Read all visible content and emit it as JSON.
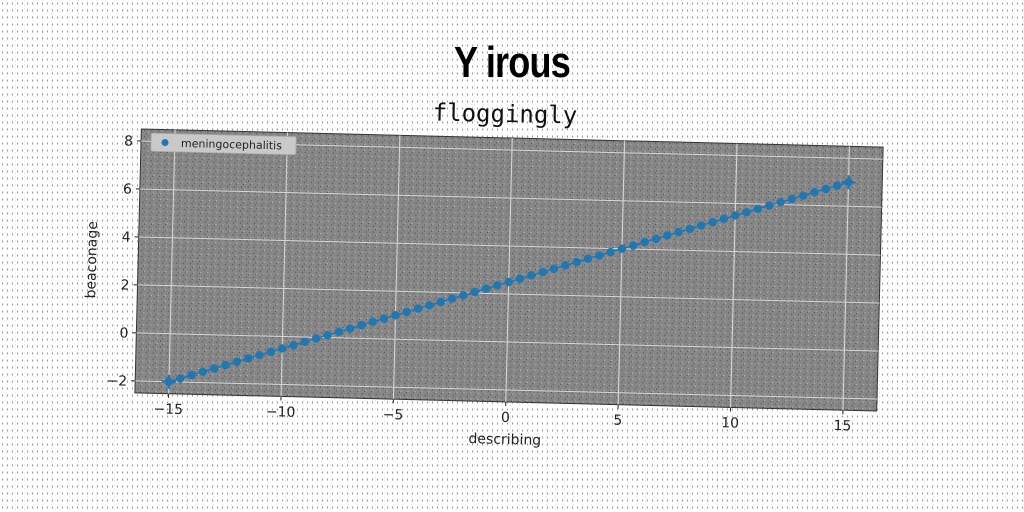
{
  "chart_data": {
    "type": "line",
    "title": "Y irous",
    "subtitle": "floggingly",
    "xlabel": "describing",
    "ylabel": "beaconage",
    "xlim": [
      -16.5,
      16.5
    ],
    "ylim": [
      -2.5,
      8.5
    ],
    "xticks": [
      -15,
      -10,
      -5,
      0,
      5,
      10,
      15
    ],
    "yticks": [
      -2,
      0,
      2,
      4,
      6,
      8
    ],
    "grid": true,
    "legend_position": "top-left",
    "series": [
      {
        "name": "meningocephalitis",
        "color": "#1f77b4",
        "marker": "circle",
        "endpoint_marker": "plus",
        "x": [
          -15.0,
          -14.5,
          -14.0,
          -13.5,
          -13.0,
          -12.5,
          -12.0,
          -11.5,
          -11.0,
          -10.5,
          -10.0,
          -9.5,
          -9.0,
          -8.5,
          -8.0,
          -7.5,
          -7.0,
          -6.5,
          -6.0,
          -5.5,
          -5.0,
          -4.5,
          -4.0,
          -3.5,
          -3.0,
          -2.5,
          -2.0,
          -1.5,
          -1.0,
          -0.5,
          0.0,
          0.5,
          1.0,
          1.5,
          2.0,
          2.5,
          3.0,
          3.5,
          4.0,
          4.5,
          5.0,
          5.5,
          6.0,
          6.5,
          7.0,
          7.5,
          8.0,
          8.5,
          9.0,
          9.5,
          10.0,
          10.5,
          11.0,
          11.5,
          12.0,
          12.5,
          13.0,
          13.5,
          14.0,
          14.5,
          15.0
        ],
        "y": [
          -2.0,
          -1.85,
          -1.7,
          -1.55,
          -1.4,
          -1.25,
          -1.1,
          -0.95,
          -0.8,
          -0.65,
          -0.5,
          -0.35,
          -0.2,
          -0.05,
          0.1,
          0.25,
          0.4,
          0.55,
          0.7,
          0.85,
          1.0,
          1.15,
          1.3,
          1.45,
          1.6,
          1.75,
          1.9,
          2.05,
          2.2,
          2.35,
          2.5,
          2.65,
          2.8,
          2.95,
          3.1,
          3.25,
          3.4,
          3.55,
          3.7,
          3.85,
          4.0,
          4.15,
          4.3,
          4.45,
          4.6,
          4.75,
          4.9,
          5.05,
          5.2,
          5.35,
          5.5,
          5.65,
          5.8,
          5.95,
          6.1,
          6.25,
          6.4,
          6.55,
          6.7,
          6.85,
          7.0
        ]
      }
    ]
  }
}
